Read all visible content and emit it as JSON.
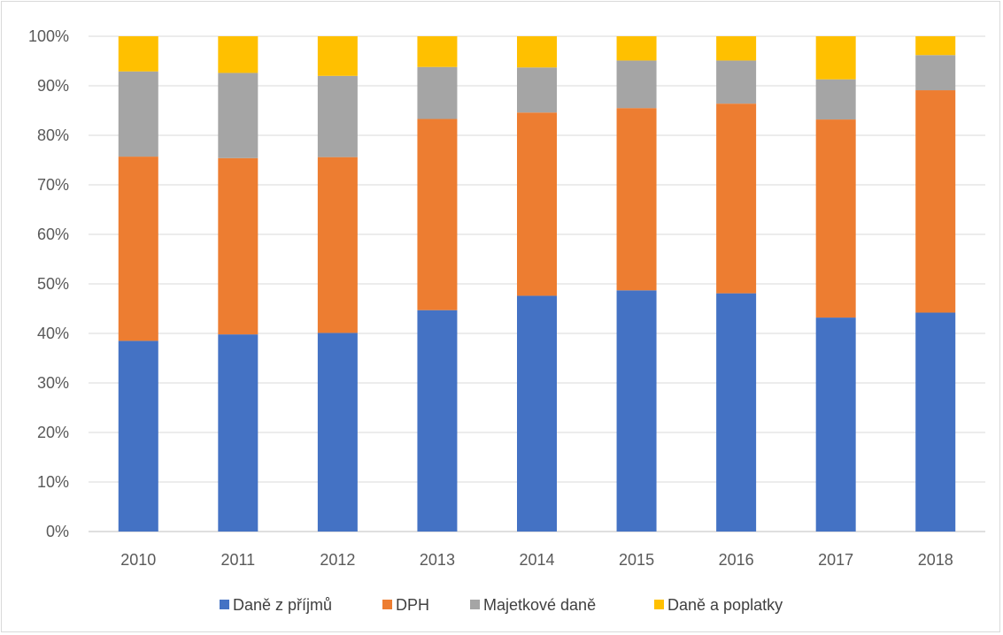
{
  "chart_data": {
    "type": "bar",
    "stacked": true,
    "percent_stacked": true,
    "categories": [
      "2010",
      "2011",
      "2012",
      "2013",
      "2014",
      "2015",
      "2016",
      "2017",
      "2018"
    ],
    "series": [
      {
        "name": "Daně z příjmů",
        "color": "#4472C4",
        "values": [
          38.5,
          39.8,
          40.1,
          44.7,
          47.6,
          48.7,
          48.1,
          43.2,
          44.2
        ]
      },
      {
        "name": "DPH",
        "color": "#ED7D31",
        "values": [
          37.2,
          35.6,
          35.5,
          38.6,
          37.0,
          36.8,
          38.3,
          40.0,
          44.9
        ]
      },
      {
        "name": "Majetkové daně",
        "color": "#A5A5A5",
        "values": [
          17.2,
          17.2,
          16.4,
          10.5,
          9.1,
          9.6,
          8.7,
          8.1,
          7.1
        ]
      },
      {
        "name": "Daně a poplatky",
        "color": "#FFC000",
        "values": [
          7.1,
          7.4,
          8.0,
          6.2,
          6.3,
          4.9,
          4.9,
          8.7,
          3.8
        ]
      }
    ],
    "y_ticks": [
      "0%",
      "10%",
      "20%",
      "30%",
      "40%",
      "50%",
      "60%",
      "70%",
      "80%",
      "90%",
      "100%"
    ],
    "ylim": [
      0,
      100
    ],
    "grid": true,
    "legend_position": "bottom"
  }
}
